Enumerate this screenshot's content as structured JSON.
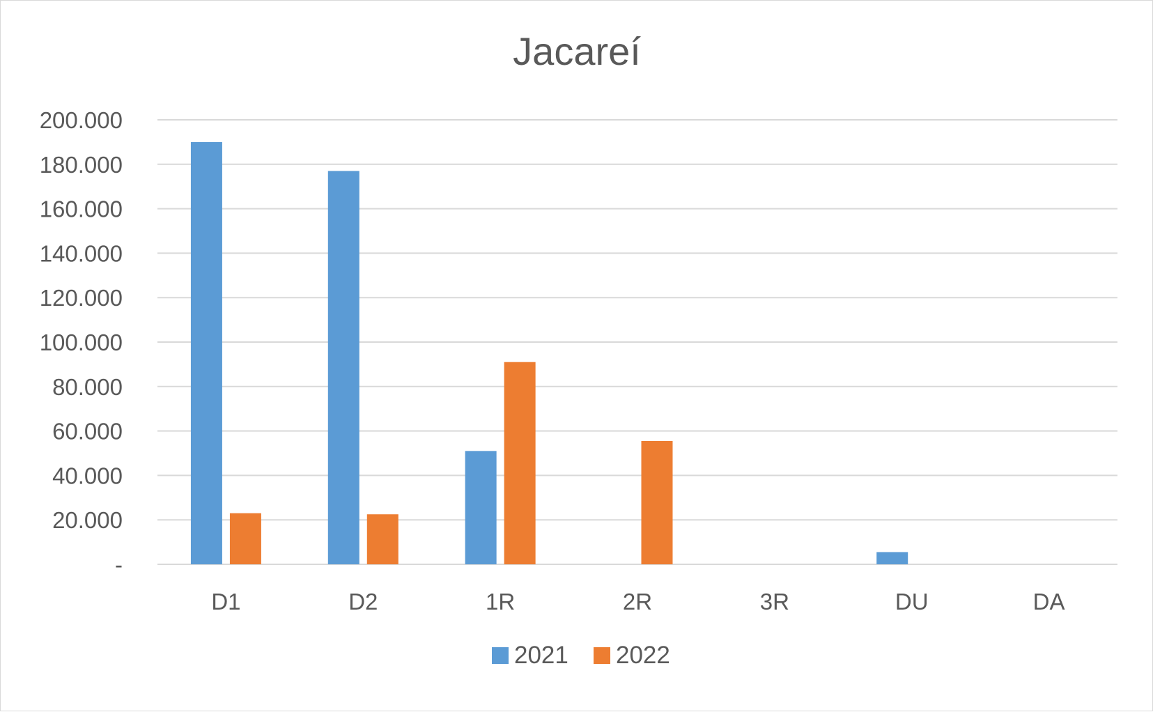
{
  "chart_data": {
    "type": "bar",
    "title": "Jacareí",
    "xlabel": "",
    "ylabel": "",
    "categories": [
      "D1",
      "D2",
      "1R",
      "2R",
      "3R",
      "DU",
      "DA"
    ],
    "series": [
      {
        "name": "2021",
        "color": "#5b9bd5",
        "values": [
          190000,
          177000,
          51000,
          0,
          0,
          5500,
          0
        ]
      },
      {
        "name": "2022",
        "color": "#ed7d31",
        "values": [
          23000,
          22500,
          91000,
          55500,
          0,
          0,
          0
        ]
      }
    ],
    "ylim": [
      0,
      200000
    ],
    "yticks": [
      0,
      20000,
      40000,
      60000,
      80000,
      100000,
      120000,
      140000,
      160000,
      180000,
      200000
    ],
    "ytick_labels": [
      "-",
      "20.000",
      "40.000",
      "60.000",
      "80.000",
      "100.000",
      "120.000",
      "140.000",
      "160.000",
      "180.000",
      "200.000"
    ],
    "grid": true,
    "legend_position": "bottom"
  }
}
